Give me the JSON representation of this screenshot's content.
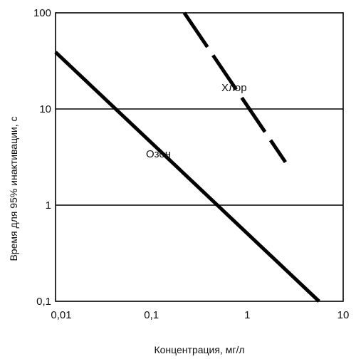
{
  "chart_data": {
    "type": "line",
    "title": "",
    "xlabel": "Концентрация, мг/л",
    "ylabel": "Время для 95% инактивации, с",
    "x_scale": "log",
    "y_scale": "log",
    "xlim": [
      0.01,
      10
    ],
    "ylim": [
      0.1,
      100
    ],
    "x_ticks": [
      {
        "value": 0.01,
        "label": "0,01"
      },
      {
        "value": 0.1,
        "label": "0,1"
      },
      {
        "value": 1,
        "label": "1"
      },
      {
        "value": 10,
        "label": "10"
      }
    ],
    "y_ticks": [
      {
        "value": 0.1,
        "label": "0,1"
      },
      {
        "value": 1,
        "label": "1"
      },
      {
        "value": 10,
        "label": "10"
      },
      {
        "value": 100,
        "label": "100"
      }
    ],
    "gridlines_y": [
      1,
      10
    ],
    "series": [
      {
        "name": "Озон",
        "line_style": "solid",
        "color": "#000000",
        "x": [
          0.01,
          5.6
        ],
        "y": [
          39,
          0.1
        ]
      },
      {
        "name": "Хлор",
        "line_style": "dashed",
        "color": "#000000",
        "x": [
          0.22,
          2.5
        ],
        "y": [
          100,
          2.8
        ]
      }
    ]
  }
}
